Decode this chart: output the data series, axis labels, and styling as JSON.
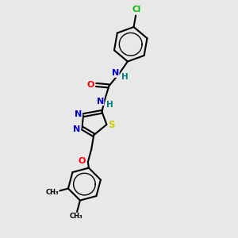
{
  "background_color": "#e8e8e8",
  "bond_color": "#000000",
  "atom_colors": {
    "C": "#000000",
    "N": "#0000cd",
    "O": "#ff0000",
    "S": "#cccc00",
    "Cl": "#00bb00",
    "H": "#008080"
  },
  "figsize": [
    3.0,
    3.0
  ],
  "dpi": 100
}
